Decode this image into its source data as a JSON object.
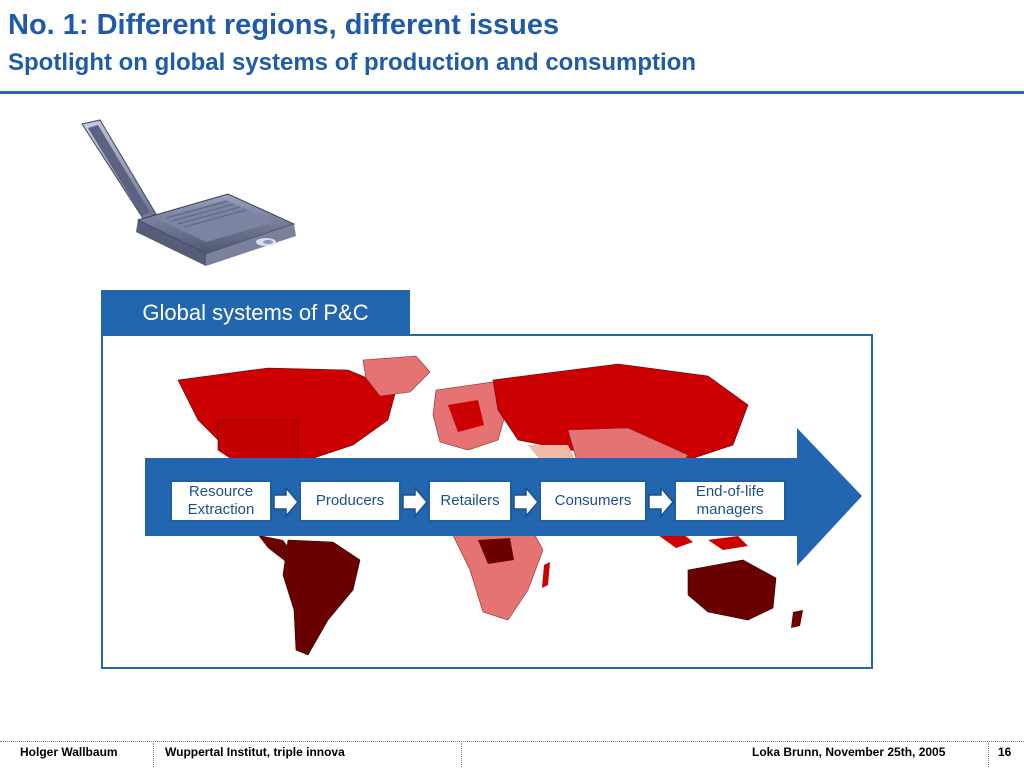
{
  "header": {
    "title": "No. 1: Different regions, different issues",
    "subtitle": "Spotlight on global systems of production and consumption"
  },
  "panel": {
    "tab_label": "Global systems of P&C"
  },
  "process": {
    "stages": [
      {
        "line1": "Resource",
        "line2": "Extraction"
      },
      {
        "line1": "Producers",
        "line2": ""
      },
      {
        "line1": "Retailers",
        "line2": ""
      },
      {
        "line1": "Consumers",
        "line2": ""
      },
      {
        "line1": "End-of-life",
        "line2": "managers"
      }
    ]
  },
  "images": {
    "laptop": "laptop-icon",
    "map": "world-map"
  },
  "colors": {
    "brand_blue": "#1f5ba6",
    "map_dark": "#6b0000",
    "map_mid": "#cc0000",
    "map_light": "#e57373",
    "map_pale": "#f2b8a8"
  },
  "footer": {
    "author": "Holger Wallbaum",
    "institute": "Wuppertal Institut, triple innova",
    "presenter_date": "Loka Brunn, November 25th, 2005",
    "page": "16"
  }
}
